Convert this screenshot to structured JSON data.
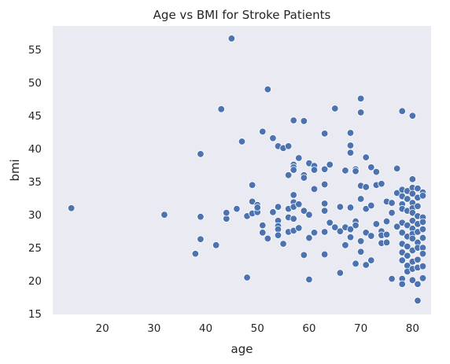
{
  "chart_data": {
    "type": "scatter",
    "title": "Age vs BMI for Stroke Patients",
    "xlabel": "age",
    "ylabel": "bmi",
    "xlim": [
      10.4,
      83.6
    ],
    "ylim": [
      14.9,
      58.6
    ],
    "xticks": [
      20,
      30,
      40,
      50,
      60,
      70,
      80
    ],
    "yticks": [
      15,
      20,
      25,
      30,
      35,
      40,
      45,
      50,
      55
    ],
    "grid": false,
    "background": "#eaeaf2",
    "marker_color": "#4c72b0",
    "series": [
      {
        "points": [
          [
            14,
            31.0
          ],
          [
            32,
            30.0
          ],
          [
            38,
            24.1
          ],
          [
            39,
            39.2
          ],
          [
            39,
            29.7
          ],
          [
            39,
            26.3
          ],
          [
            42,
            25.4
          ],
          [
            43,
            46.0
          ],
          [
            44,
            29.4
          ],
          [
            44,
            30.3
          ],
          [
            45,
            56.7
          ],
          [
            46,
            30.9
          ],
          [
            47,
            41.1
          ],
          [
            48,
            29.8
          ],
          [
            48,
            20.5
          ],
          [
            49,
            30.2
          ],
          [
            49,
            34.5
          ],
          [
            49,
            32.0
          ],
          [
            50,
            30.4
          ],
          [
            50,
            31.5
          ],
          [
            50,
            31.1
          ],
          [
            51,
            42.6
          ],
          [
            51,
            28.4
          ],
          [
            51,
            27.3
          ],
          [
            52,
            49.0
          ],
          [
            52,
            26.4
          ],
          [
            53,
            41.6
          ],
          [
            53,
            30.4
          ],
          [
            54,
            40.4
          ],
          [
            54,
            31.2
          ],
          [
            54,
            29.1
          ],
          [
            54,
            28.3
          ],
          [
            54,
            27.8
          ],
          [
            54,
            26.9
          ],
          [
            55,
            40.1
          ],
          [
            55,
            25.6
          ],
          [
            56,
            40.4
          ],
          [
            56,
            36.0
          ],
          [
            56,
            30.9
          ],
          [
            56,
            29.6
          ],
          [
            56,
            27.4
          ],
          [
            57,
            44.3
          ],
          [
            57,
            37.6
          ],
          [
            57,
            37.2
          ],
          [
            57,
            36.8
          ],
          [
            57,
            33.0
          ],
          [
            57,
            31.9
          ],
          [
            57,
            31.2
          ],
          [
            57,
            29.4
          ],
          [
            57,
            27.6
          ],
          [
            58,
            38.6
          ],
          [
            58,
            31.6
          ],
          [
            58,
            28.0
          ],
          [
            59,
            44.2
          ],
          [
            59,
            36.0
          ],
          [
            59,
            35.6
          ],
          [
            59,
            30.6
          ],
          [
            59,
            23.9
          ],
          [
            60,
            37.8
          ],
          [
            60,
            30.0
          ],
          [
            60,
            26.5
          ],
          [
            60,
            20.2
          ],
          [
            61,
            37.4
          ],
          [
            61,
            36.8
          ],
          [
            61,
            33.9
          ],
          [
            61,
            27.3
          ],
          [
            63,
            42.3
          ],
          [
            63,
            36.9
          ],
          [
            63,
            34.6
          ],
          [
            63,
            31.7
          ],
          [
            63,
            30.6
          ],
          [
            63,
            27.4
          ],
          [
            63,
            24.0
          ],
          [
            64,
            37.6
          ],
          [
            64,
            28.8
          ],
          [
            65,
            46.1
          ],
          [
            65,
            28.1
          ],
          [
            66,
            31.2
          ],
          [
            66,
            27.5
          ],
          [
            66,
            21.2
          ],
          [
            67,
            36.7
          ],
          [
            67,
            28.1
          ],
          [
            67,
            25.4
          ],
          [
            68,
            42.4
          ],
          [
            68,
            40.5
          ],
          [
            68,
            39.4
          ],
          [
            68,
            31.1
          ],
          [
            68,
            27.8
          ],
          [
            68,
            26.6
          ],
          [
            69,
            36.9
          ],
          [
            69,
            36.6
          ],
          [
            69,
            29.0
          ],
          [
            69,
            28.4
          ],
          [
            69,
            22.6
          ],
          [
            70,
            47.6
          ],
          [
            70,
            45.5
          ],
          [
            70,
            34.4
          ],
          [
            70,
            32.4
          ],
          [
            70,
            26.0
          ],
          [
            70,
            24.4
          ],
          [
            71,
            38.7
          ],
          [
            71,
            34.2
          ],
          [
            71,
            30.9
          ],
          [
            71,
            27.3
          ],
          [
            71,
            22.4
          ],
          [
            72,
            37.2
          ],
          [
            72,
            31.4
          ],
          [
            72,
            26.8
          ],
          [
            72,
            23.1
          ],
          [
            73,
            36.5
          ],
          [
            73,
            34.5
          ],
          [
            73,
            28.6
          ],
          [
            74,
            34.7
          ],
          [
            74,
            27.5
          ],
          [
            74,
            26.9
          ],
          [
            74,
            25.7
          ],
          [
            75,
            32.0
          ],
          [
            75,
            29.0
          ],
          [
            75,
            27.0
          ],
          [
            75,
            25.8
          ],
          [
            76,
            31.8
          ],
          [
            76,
            30.3
          ],
          [
            76,
            20.3
          ],
          [
            77,
            37.0
          ],
          [
            77,
            33.3
          ],
          [
            77,
            28.2
          ],
          [
            78,
            45.7
          ],
          [
            78,
            33.8
          ],
          [
            78,
            32.8
          ],
          [
            78,
            31.6
          ],
          [
            78,
            30.9
          ],
          [
            78,
            28.8
          ],
          [
            78,
            27.3
          ],
          [
            78,
            25.6
          ],
          [
            78,
            24.3
          ],
          [
            78,
            23.1
          ],
          [
            78,
            20.3
          ],
          [
            78,
            19.5
          ],
          [
            79,
            33.6
          ],
          [
            79,
            32.4
          ],
          [
            79,
            30.6
          ],
          [
            79,
            28.4
          ],
          [
            79,
            26.7
          ],
          [
            79,
            25.2
          ],
          [
            79,
            23.8
          ],
          [
            79,
            22.3
          ],
          [
            79,
            21.4
          ],
          [
            80,
            45.0
          ],
          [
            80,
            35.4
          ],
          [
            80,
            34.1
          ],
          [
            80,
            33.2
          ],
          [
            80,
            31.8
          ],
          [
            80,
            31.0
          ],
          [
            80,
            30.3
          ],
          [
            80,
            29.1
          ],
          [
            80,
            27.9
          ],
          [
            80,
            27.1
          ],
          [
            80,
            26.4
          ],
          [
            80,
            24.6
          ],
          [
            80,
            22.9
          ],
          [
            80,
            21.8
          ],
          [
            80,
            20.1
          ],
          [
            81,
            34.0
          ],
          [
            81,
            32.6
          ],
          [
            81,
            31.3
          ],
          [
            81,
            29.8
          ],
          [
            81,
            28.6
          ],
          [
            81,
            27.4
          ],
          [
            81,
            25.8
          ],
          [
            81,
            25.0
          ],
          [
            81,
            23.2
          ],
          [
            81,
            22.0
          ],
          [
            81,
            19.5
          ],
          [
            81,
            17.0
          ],
          [
            82,
            33.4
          ],
          [
            82,
            32.9
          ],
          [
            82,
            29.6
          ],
          [
            82,
            28.9
          ],
          [
            82,
            27.8
          ],
          [
            82,
            26.5
          ],
          [
            82,
            25.0
          ],
          [
            82,
            24.1
          ],
          [
            82,
            22.2
          ],
          [
            82,
            20.4
          ]
        ]
      }
    ]
  }
}
